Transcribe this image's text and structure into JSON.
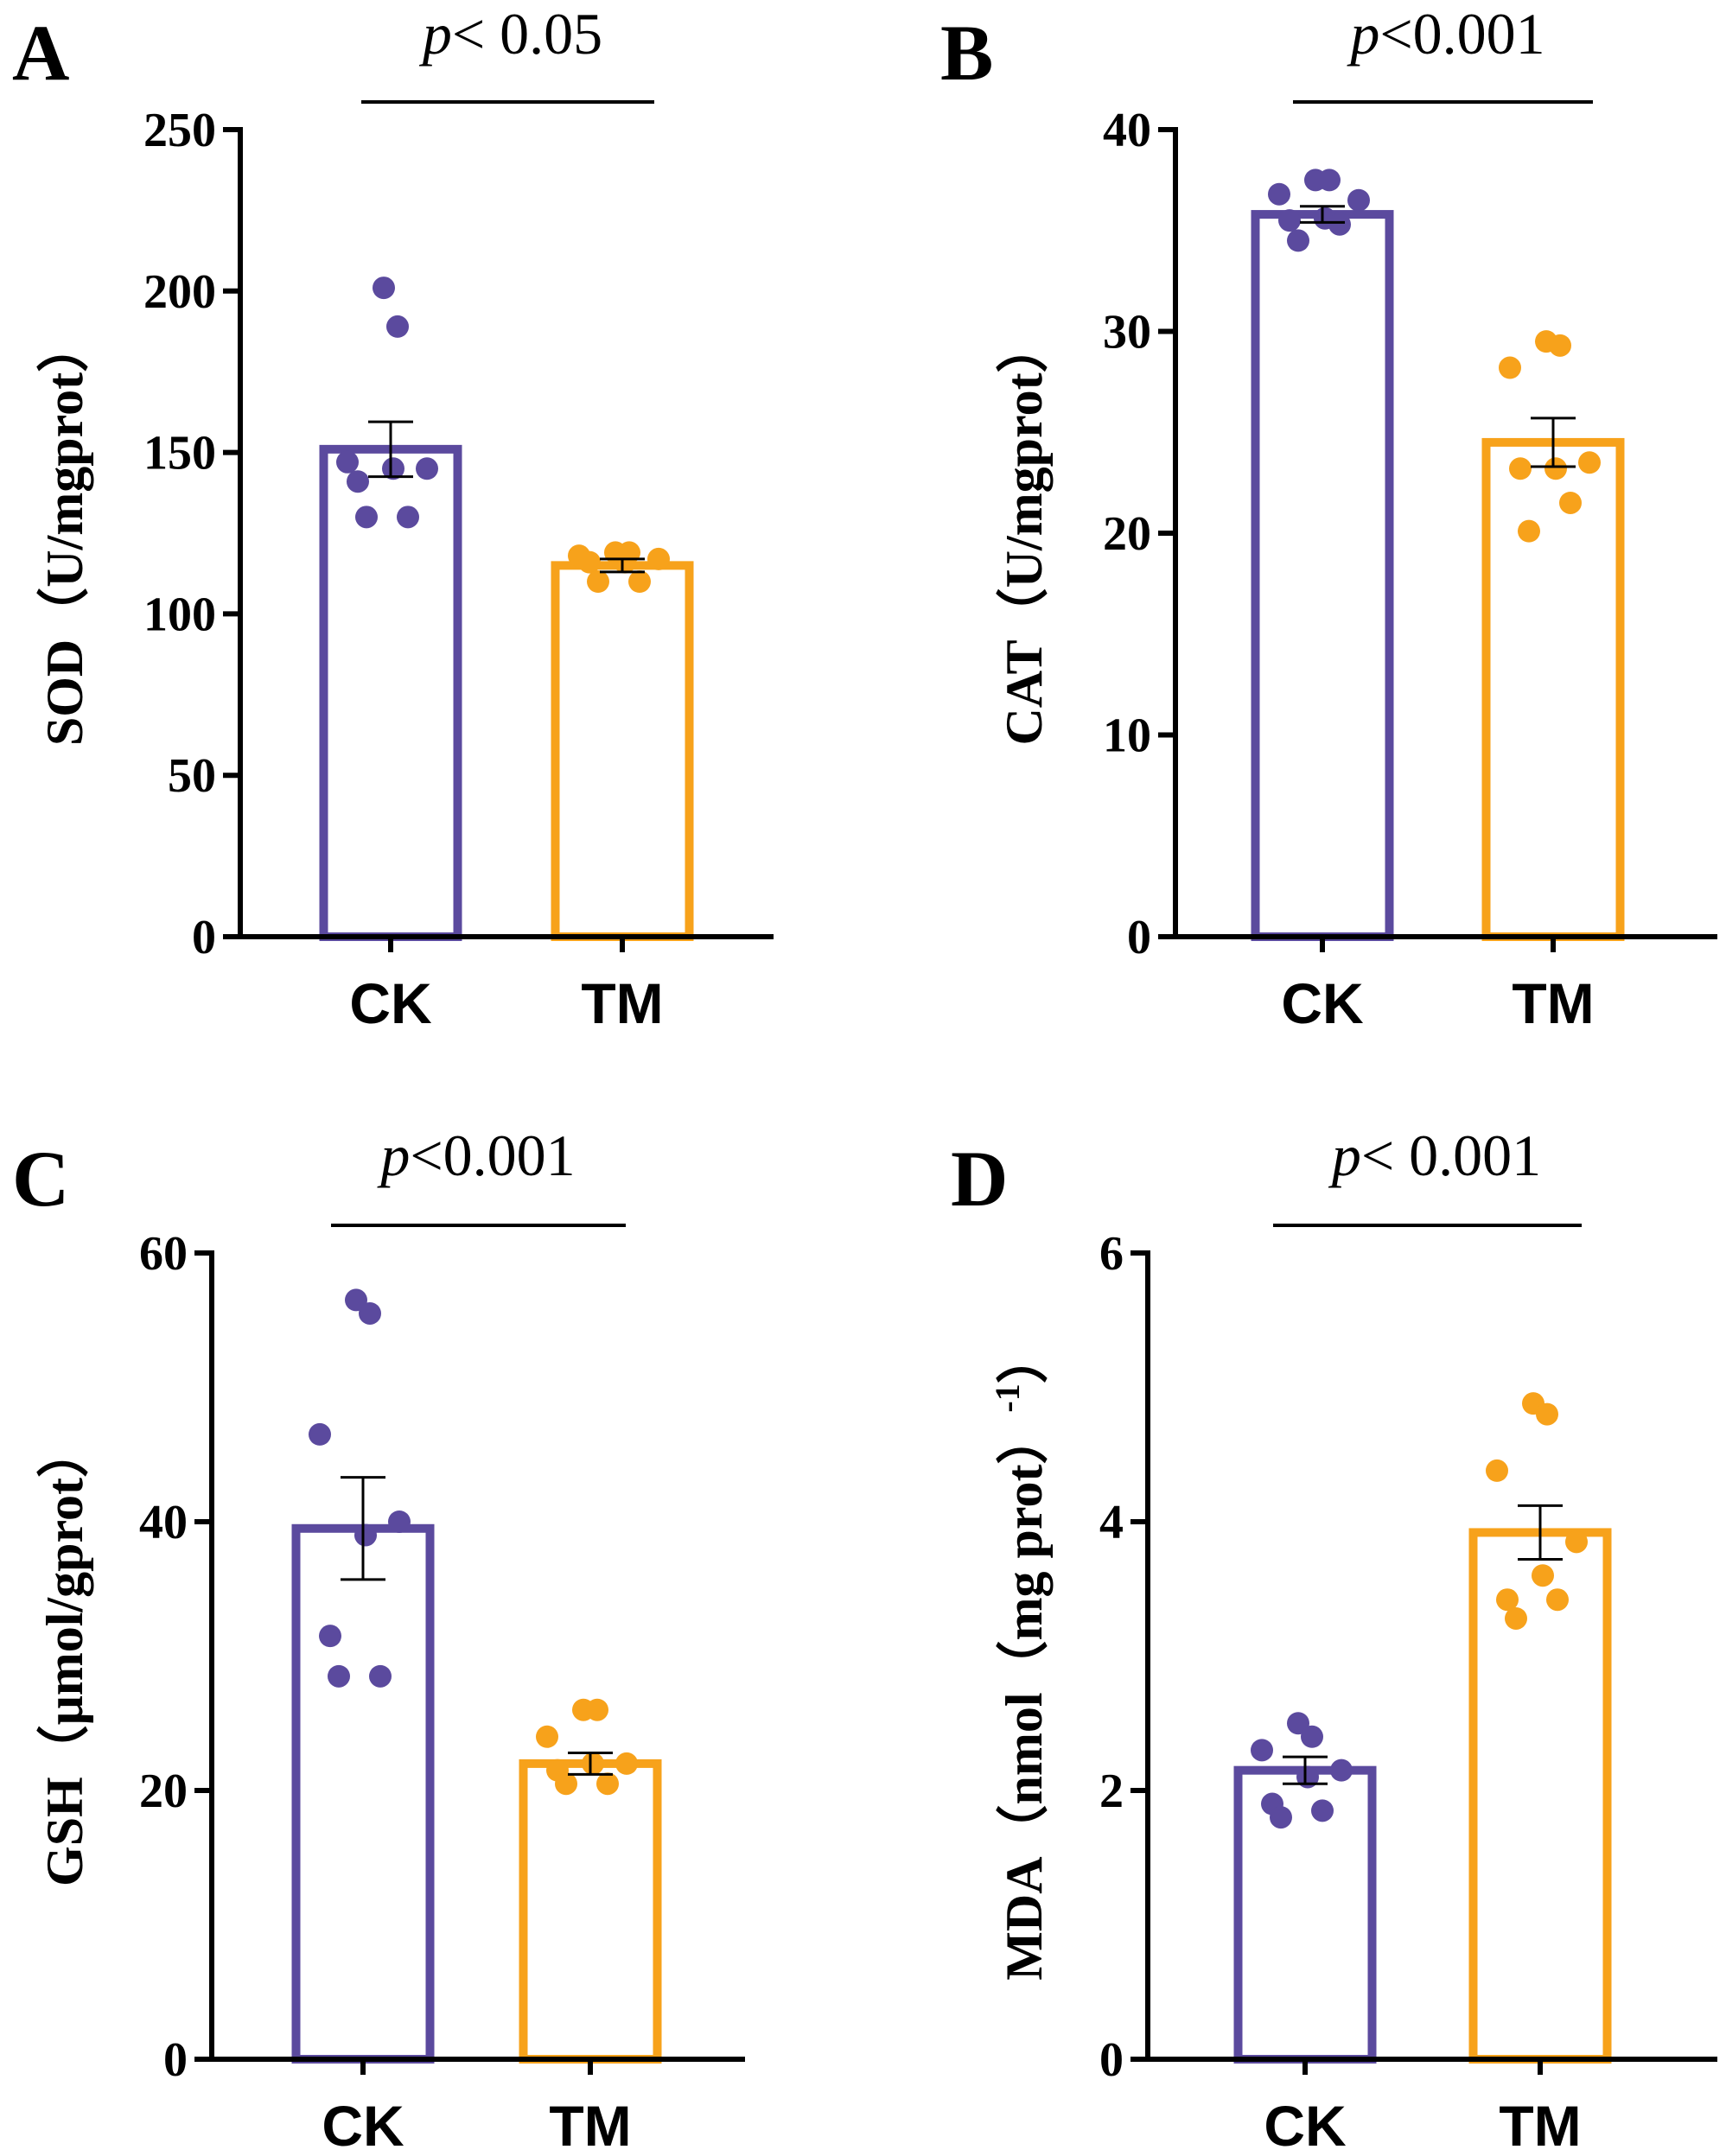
{
  "colors": {
    "CK": "#5b4a9e",
    "TM": "#f7a21b",
    "axis": "#000000"
  },
  "chart_data": [
    {
      "panel": "A",
      "type": "bar",
      "categories": [
        "CK",
        "TM"
      ],
      "ylabel": "SOD（U/mgprot）",
      "significance": {
        "prefix": "p",
        "text": "< 0.05"
      },
      "ylim": [
        0,
        250
      ],
      "yticks": [
        "0",
        "50",
        "100",
        "150",
        "200",
        "250"
      ],
      "yticks_values": [
        0,
        50,
        100,
        150,
        200,
        250
      ],
      "means": [
        151,
        115
      ],
      "sem": [
        8.5,
        2
      ],
      "points": [
        [
          201,
          189,
          147,
          145,
          145,
          141,
          130,
          130
        ],
        [
          119,
          119,
          118,
          117,
          116,
          116,
          110,
          110
        ]
      ]
    },
    {
      "panel": "B",
      "type": "bar",
      "categories": [
        "CK",
        "TM"
      ],
      "ylabel": "CAT（U/mgprot）",
      "significance": {
        "prefix": "p",
        "text": "<0.001"
      },
      "ylim": [
        0,
        40
      ],
      "yticks": [
        "0",
        "10",
        "20",
        "30",
        "40"
      ],
      "yticks_values": [
        0,
        10,
        20,
        30,
        40
      ],
      "means": [
        35.8,
        24.5
      ],
      "sem": [
        0.4,
        1.2
      ],
      "points": [
        [
          37.5,
          37.5,
          36.8,
          36.5,
          35.6,
          35.5,
          35.3,
          34.5
        ],
        [
          29.5,
          29.3,
          28.2,
          23.5,
          23.2,
          23.2,
          21.5,
          20.1
        ]
      ]
    },
    {
      "panel": "C",
      "type": "bar",
      "categories": [
        "CK",
        "TM"
      ],
      "ylabel": "GSH（μmol/gprot）",
      "significance": {
        "prefix": "p",
        "text": "<0.001"
      },
      "ylim": [
        0,
        60
      ],
      "yticks": [
        "0",
        "20",
        "40",
        "60"
      ],
      "yticks_values": [
        0,
        20,
        40,
        60
      ],
      "means": [
        39.5,
        22
      ],
      "sem": [
        3.8,
        0.8
      ],
      "points": [
        [
          56.5,
          55.5,
          46.5,
          40,
          39,
          31.5,
          28.5,
          28.5
        ],
        [
          26,
          26,
          24,
          22,
          22,
          21.5,
          20.5,
          20.5
        ]
      ]
    },
    {
      "panel": "D",
      "type": "bar",
      "categories": [
        "CK",
        "TM"
      ],
      "ylabel": "MDA（nmol（mg prot）",
      "ylabel_sup": "-1",
      "ylabel_end": "）",
      "significance": {
        "prefix": "p",
        "text": "< 0.001"
      },
      "ylim": [
        0,
        6
      ],
      "yticks": [
        "0",
        "2",
        "4",
        "6"
      ],
      "yticks_values": [
        0,
        2,
        4,
        6
      ],
      "means": [
        2.15,
        3.92
      ],
      "sem": [
        0.1,
        0.2
      ],
      "points": [
        [
          2.5,
          2.4,
          2.3,
          2.15,
          2.1,
          1.9,
          1.85,
          1.8
        ],
        [
          4.88,
          4.8,
          4.38,
          3.85,
          3.6,
          3.42,
          3.42,
          3.28
        ]
      ]
    }
  ]
}
